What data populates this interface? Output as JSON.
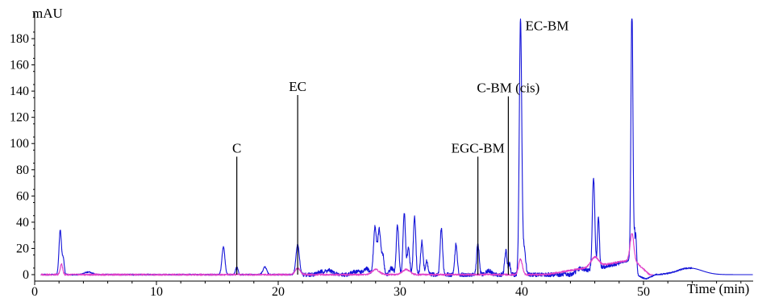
{
  "chart_data": {
    "type": "line",
    "ylabel": "mAU",
    "xlabel": "Time (min)",
    "xlim": [
      0,
      59
    ],
    "ylim": [
      -4,
      195
    ],
    "x_ticks": [
      0,
      10,
      20,
      30,
      40,
      50
    ],
    "y_ticks": [
      0,
      20,
      40,
      60,
      80,
      100,
      120,
      140,
      160,
      180
    ],
    "colors": {
      "blue_trace": "#1414d8",
      "pink_trace": "#e040c8",
      "axis": "#000000"
    },
    "series": [
      {
        "key": "blue",
        "peaks": [
          [
            2.1,
            34,
            0.1
          ],
          [
            2.35,
            12,
            0.08
          ],
          [
            4.4,
            2,
            0.3
          ],
          [
            15.5,
            21,
            0.12
          ],
          [
            16.6,
            6,
            0.1
          ],
          [
            18.9,
            6,
            0.15
          ],
          [
            21.6,
            23,
            0.14
          ],
          [
            23.5,
            2,
            0.3
          ],
          [
            24.2,
            3,
            0.3
          ],
          [
            26.5,
            2.5,
            0.4
          ],
          [
            27.3,
            4,
            0.2
          ],
          [
            27.95,
            36,
            0.12
          ],
          [
            28.3,
            34,
            0.12
          ],
          [
            28.6,
            14,
            0.1
          ],
          [
            29.3,
            5,
            0.15
          ],
          [
            29.8,
            38,
            0.1
          ],
          [
            30.35,
            47,
            0.1
          ],
          [
            30.7,
            20,
            0.1
          ],
          [
            31.2,
            44,
            0.1
          ],
          [
            31.8,
            25,
            0.1
          ],
          [
            32.2,
            10,
            0.1
          ],
          [
            33.4,
            35,
            0.1
          ],
          [
            34.6,
            23,
            0.1
          ],
          [
            36.4,
            24,
            0.1
          ],
          [
            37.3,
            3,
            0.2
          ],
          [
            38.7,
            18,
            0.1
          ],
          [
            39.0,
            8,
            0.08
          ],
          [
            39.9,
            195,
            0.1
          ],
          [
            40.2,
            20,
            0.12
          ],
          [
            44.8,
            3,
            0.3
          ],
          [
            45.9,
            70,
            0.1
          ],
          [
            46.3,
            38,
            0.08
          ],
          [
            49.05,
            195,
            0.08
          ],
          [
            49.35,
            32,
            0.08
          ],
          [
            53.8,
            5,
            1.0
          ]
        ]
      },
      {
        "key": "pink",
        "peaks": [
          [
            2.2,
            8,
            0.1
          ],
          [
            21.6,
            5,
            0.2
          ],
          [
            28.0,
            4,
            0.3
          ],
          [
            30.5,
            4,
            0.3
          ],
          [
            39.9,
            12,
            0.15
          ],
          [
            46.0,
            7,
            0.3
          ],
          [
            49.05,
            20,
            0.15
          ]
        ]
      }
    ],
    "annotations": [
      {
        "label": "C",
        "x": 16.6,
        "y_top": 90
      },
      {
        "label": "EC",
        "x": 21.6,
        "y_top": 137
      },
      {
        "label": "EGC-BM",
        "x": 36.4,
        "y_top": 90
      },
      {
        "label": "C-BM (cis)",
        "x": 38.9,
        "y_top": 136
      },
      {
        "label": "EC-BM",
        "x": 39.9,
        "y_top": 195
      }
    ]
  }
}
